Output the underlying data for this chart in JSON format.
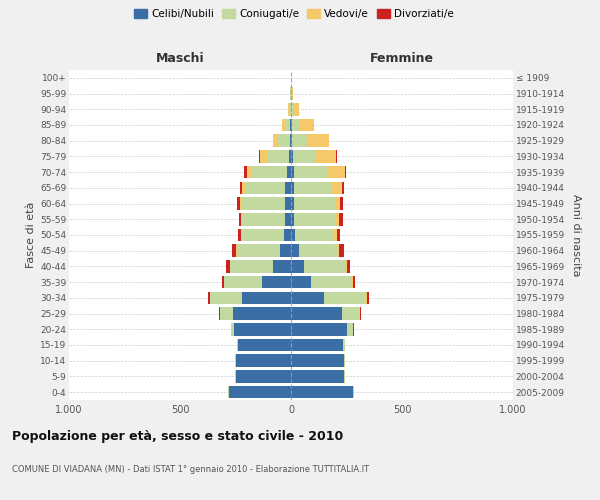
{
  "age_groups": [
    "0-4",
    "5-9",
    "10-14",
    "15-19",
    "20-24",
    "25-29",
    "30-34",
    "35-39",
    "40-44",
    "45-49",
    "50-54",
    "55-59",
    "60-64",
    "65-69",
    "70-74",
    "75-79",
    "80-84",
    "85-89",
    "90-94",
    "95-99",
    "100+"
  ],
  "birth_years": [
    "2005-2009",
    "2000-2004",
    "1995-1999",
    "1990-1994",
    "1985-1989",
    "1980-1984",
    "1975-1979",
    "1970-1974",
    "1965-1969",
    "1960-1964",
    "1955-1959",
    "1950-1954",
    "1945-1949",
    "1940-1944",
    "1935-1939",
    "1930-1934",
    "1925-1929",
    "1920-1924",
    "1915-1919",
    "1910-1914",
    "≤ 1909"
  ],
  "colors": {
    "celibe": "#3A6EA5",
    "coniugato": "#C2D9A0",
    "vedovo": "#F5C96A",
    "divorziato": "#CC2222"
  },
  "maschi": {
    "celibe": [
      280,
      250,
      250,
      240,
      255,
      260,
      220,
      130,
      80,
      50,
      30,
      25,
      25,
      25,
      20,
      10,
      5,
      3,
      2,
      1,
      0
    ],
    "coniugato": [
      2,
      2,
      2,
      5,
      15,
      60,
      145,
      170,
      195,
      195,
      195,
      195,
      200,
      180,
      160,
      95,
      55,
      25,
      8,
      3,
      1
    ],
    "vedovo": [
      0,
      0,
      0,
      0,
      0,
      2,
      2,
      2,
      2,
      2,
      2,
      3,
      5,
      15,
      20,
      35,
      20,
      12,
      3,
      1,
      0
    ],
    "divorziato": [
      0,
      0,
      0,
      0,
      1,
      3,
      8,
      10,
      15,
      18,
      12,
      12,
      12,
      10,
      10,
      2,
      1,
      0,
      0,
      0,
      0
    ]
  },
  "femmine": {
    "nubile": [
      280,
      240,
      240,
      235,
      250,
      230,
      150,
      90,
      60,
      35,
      20,
      15,
      15,
      15,
      12,
      8,
      5,
      3,
      2,
      1,
      0
    ],
    "coniugata": [
      2,
      3,
      3,
      10,
      30,
      80,
      190,
      185,
      185,
      175,
      175,
      185,
      185,
      170,
      150,
      100,
      65,
      35,
      12,
      4,
      1
    ],
    "vedova": [
      0,
      0,
      0,
      0,
      1,
      2,
      3,
      5,
      8,
      8,
      10,
      15,
      20,
      45,
      80,
      95,
      100,
      65,
      20,
      5,
      1
    ],
    "divorziata": [
      0,
      0,
      0,
      0,
      1,
      3,
      8,
      10,
      15,
      20,
      15,
      18,
      15,
      8,
      5,
      2,
      1,
      0,
      0,
      0,
      0
    ]
  },
  "xlim": 1000,
  "title": "Popolazione per età, sesso e stato civile - 2010",
  "subtitle": "COMUNE DI VIADANA (MN) - Dati ISTAT 1° gennaio 2010 - Elaborazione TUTTITALIA.IT",
  "ylabel_left": "Fasce di età",
  "ylabel_right": "Anni di nascita",
  "xlabel_left": "Maschi",
  "xlabel_right": "Femmine",
  "legend_labels": [
    "Celibi/Nubili",
    "Coniugati/e",
    "Vedovi/e",
    "Divorziati/e"
  ],
  "background_color": "#f0f0f0",
  "plot_bg": "#ffffff"
}
